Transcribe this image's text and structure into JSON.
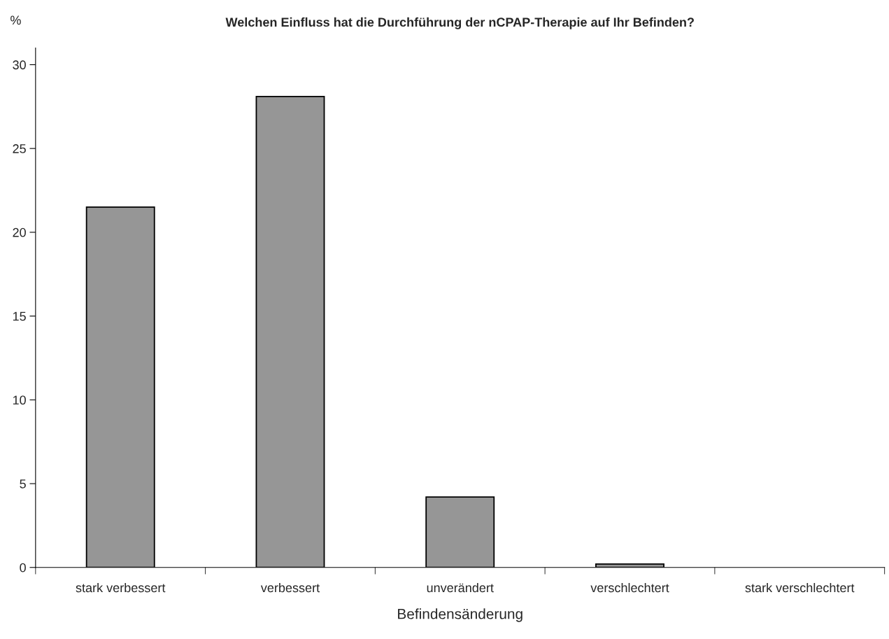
{
  "chart_data": {
    "type": "bar",
    "title": "Welchen Einfluss hat die Durchführung der nCPAP-Therapie auf Ihr Befinden?",
    "xlabel": "Befindensänderung",
    "ylabel": "%",
    "categories": [
      "stark verbessert",
      "verbessert",
      "unverändert",
      "verschlechtert",
      "stark verschlechtert"
    ],
    "values": [
      21.5,
      28.1,
      4.2,
      0.2,
      null
    ],
    "color": "#969696",
    "ylim": [
      0,
      31
    ],
    "yticks": [
      0,
      5,
      10,
      15,
      20,
      25,
      30
    ],
    "grid": false,
    "legend": false
  }
}
